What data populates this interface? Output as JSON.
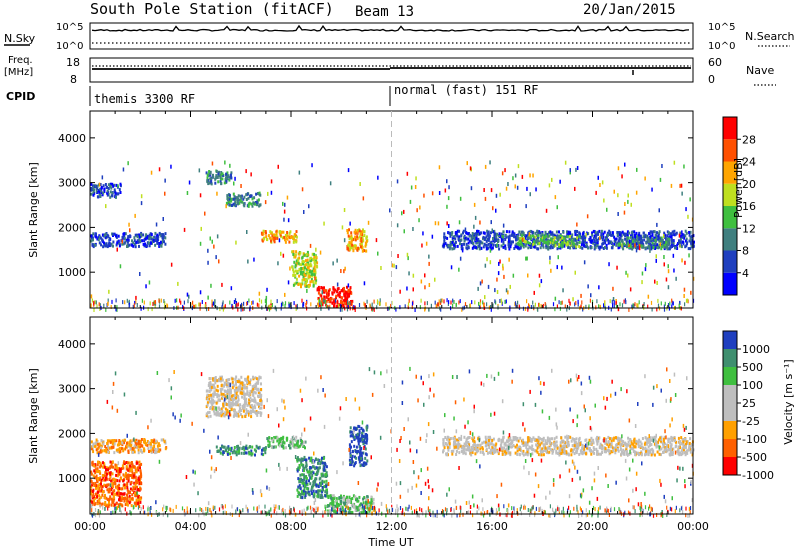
{
  "header": {
    "station": "South Pole Station (fitACF)",
    "beam": "Beam 13",
    "date": "20/Jan/2015"
  },
  "top_panels": {
    "nsky_label": "N.Sky",
    "nsky_ticks": [
      "10^5",
      "10^0"
    ],
    "nsearch_label": "N.Search",
    "nsearch_ticks": [
      "10^5",
      "10^0"
    ],
    "freq_label": "Freq.",
    "freq_unit": "[MHz]",
    "freq_ticks": [
      "18",
      "8"
    ],
    "nave_label": "Nave",
    "nave_ticks": [
      "60",
      "0"
    ],
    "cpid_label": "CPID",
    "cpid_modes": [
      {
        "label": "themis 3300 RF",
        "start_ut": 0
      },
      {
        "label": "normal (fast) 151 RF",
        "start_ut": 12
      }
    ]
  },
  "colors": {
    "power": [
      "#0000ff",
      "#1f3fbf",
      "#3f7f7f",
      "#3fbf3f",
      "#bfdf1f",
      "#ffa500",
      "#ff5000",
      "#ff0000"
    ],
    "velocity": [
      "#ff0000",
      "#ff6000",
      "#ffa000",
      "#bebebe",
      "#bebebe",
      "#3fbf3f",
      "#3f8f6f",
      "#1f3fbf"
    ]
  },
  "chart_data": [
    {
      "type": "heatmap",
      "name": "power-panel",
      "xlabel": "",
      "ylabel": "Slant Range [km]",
      "xlim": [
        0,
        24
      ],
      "ylim": [
        200,
        4600
      ],
      "y_ticks": [
        1000,
        2000,
        3000,
        4000
      ],
      "colorbar_label": "Power [dB]",
      "colorbar_ticks": [
        "28",
        "24",
        "20",
        "16",
        "12",
        "8",
        "4"
      ],
      "features": [
        {
          "t0": 0.0,
          "t1": 1.2,
          "r0": 2700,
          "r1": 3000,
          "level": 1
        },
        {
          "t0": 0.0,
          "t1": 3.0,
          "r0": 1600,
          "r1": 1900,
          "level": 1
        },
        {
          "t0": 4.6,
          "t1": 5.6,
          "r0": 3000,
          "r1": 3300,
          "level": 2
        },
        {
          "t0": 5.4,
          "t1": 6.8,
          "r0": 2500,
          "r1": 2800,
          "level": 2
        },
        {
          "t0": 6.8,
          "t1": 8.2,
          "r0": 1700,
          "r1": 1950,
          "level": 5
        },
        {
          "t0": 8.0,
          "t1": 9.0,
          "r0": 700,
          "r1": 1500,
          "level": 4
        },
        {
          "t0": 9.0,
          "t1": 10.4,
          "r0": 250,
          "r1": 700,
          "level": 7
        },
        {
          "t0": 10.2,
          "t1": 11.0,
          "r0": 1500,
          "r1": 2000,
          "level": 5
        },
        {
          "t0": 14.0,
          "t1": 24.0,
          "r0": 1550,
          "r1": 1950,
          "level": 1
        },
        {
          "t0": 17.0,
          "t1": 19.5,
          "r0": 1600,
          "r1": 1850,
          "level": 3
        },
        {
          "t0": 21.0,
          "t1": 23.0,
          "r0": 1550,
          "r1": 1800,
          "level": 2
        }
      ]
    },
    {
      "type": "heatmap",
      "name": "velocity-panel",
      "xlabel": "Time UT",
      "ylabel": "Slant Range [km]",
      "xlim": [
        0,
        24
      ],
      "ylim": [
        200,
        4600
      ],
      "x_ticks": [
        "00:00",
        "04:00",
        "08:00",
        "12:00",
        "16:00",
        "20:00",
        "00:00"
      ],
      "y_ticks": [
        1000,
        2000,
        3000,
        4000
      ],
      "colorbar_label": "Velocity [m s⁻¹]",
      "colorbar_ticks": [
        "1000",
        "500",
        "100",
        "25",
        "-25",
        "-100",
        "-500",
        "-1000"
      ],
      "features": [
        {
          "t0": 0.0,
          "t1": 2.0,
          "r0": 400,
          "r1": 1400,
          "level": 1
        },
        {
          "t0": 0.0,
          "t1": 3.0,
          "r0": 1600,
          "r1": 1900,
          "level": 2
        },
        {
          "t0": 4.6,
          "t1": 6.8,
          "r0": 2400,
          "r1": 3300,
          "level": 3
        },
        {
          "t0": 5.0,
          "t1": 7.0,
          "r0": 1550,
          "r1": 1750,
          "level": 6
        },
        {
          "t0": 7.0,
          "t1": 8.6,
          "r0": 1700,
          "r1": 1950,
          "level": 5
        },
        {
          "t0": 8.2,
          "t1": 9.4,
          "r0": 600,
          "r1": 1500,
          "level": 6
        },
        {
          "t0": 9.4,
          "t1": 11.3,
          "r0": 250,
          "r1": 650,
          "level": 5
        },
        {
          "t0": 10.3,
          "t1": 11.0,
          "r0": 1300,
          "r1": 2200,
          "level": 7
        },
        {
          "t0": 14.0,
          "t1": 24.0,
          "r0": 1550,
          "r1": 1950,
          "level": 3
        }
      ]
    }
  ]
}
